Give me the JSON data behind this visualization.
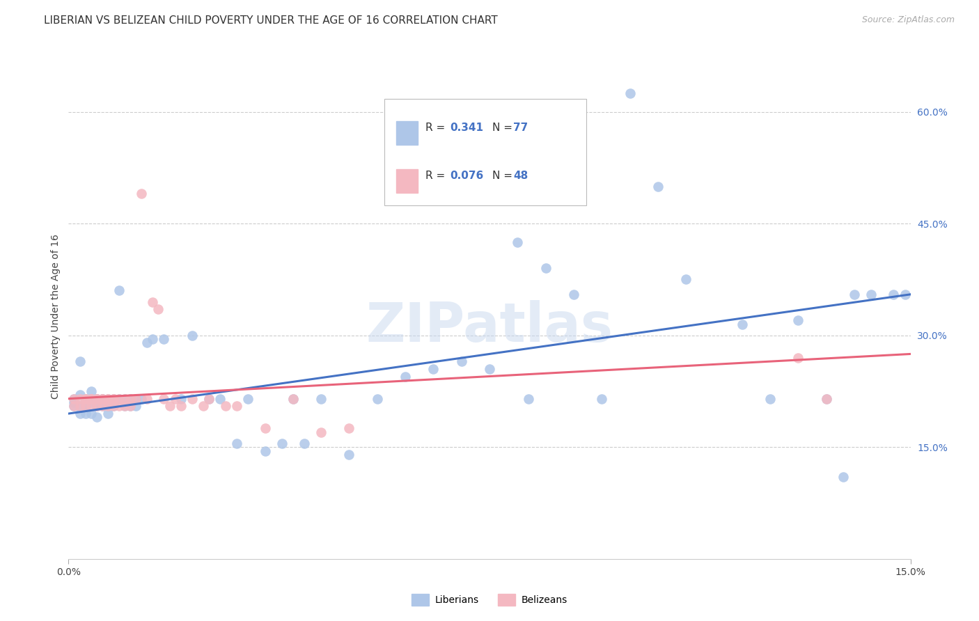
{
  "title": "LIBERIAN VS BELIZEAN CHILD POVERTY UNDER THE AGE OF 16 CORRELATION CHART",
  "source": "Source: ZipAtlas.com",
  "ylabel": "Child Poverty Under the Age of 16",
  "xlim": [
    0.0,
    0.15
  ],
  "ylim": [
    0.0,
    0.65
  ],
  "yticks": [
    0.15,
    0.3,
    0.45,
    0.6
  ],
  "ytick_labels": [
    "15.0%",
    "30.0%",
    "45.0%",
    "60.0%"
  ],
  "watermark_text": "ZIPatlas",
  "liberian_color": "#aec6e8",
  "belizean_color": "#f4b8c1",
  "liberian_line_color": "#4472c4",
  "belizean_line_color": "#e8637a",
  "background_color": "#ffffff",
  "grid_color": "#cccccc",
  "liberian_x": [
    0.001,
    0.001,
    0.001,
    0.002,
    0.002,
    0.002,
    0.002,
    0.003,
    0.003,
    0.003,
    0.003,
    0.003,
    0.004,
    0.004,
    0.004,
    0.004,
    0.005,
    0.005,
    0.005,
    0.005,
    0.005,
    0.006,
    0.006,
    0.006,
    0.006,
    0.007,
    0.007,
    0.007,
    0.008,
    0.008,
    0.008,
    0.009,
    0.009,
    0.01,
    0.01,
    0.011,
    0.011,
    0.012,
    0.012,
    0.013,
    0.014,
    0.015,
    0.017,
    0.02,
    0.022,
    0.025,
    0.027,
    0.03,
    0.032,
    0.035,
    0.038,
    0.04,
    0.042,
    0.045,
    0.05,
    0.055,
    0.06,
    0.065,
    0.07,
    0.075,
    0.08,
    0.082,
    0.085,
    0.09,
    0.095,
    0.1,
    0.105,
    0.11,
    0.12,
    0.125,
    0.13,
    0.135,
    0.138,
    0.14,
    0.143,
    0.147,
    0.149
  ],
  "liberian_y": [
    0.215,
    0.21,
    0.205,
    0.265,
    0.22,
    0.205,
    0.195,
    0.21,
    0.205,
    0.215,
    0.195,
    0.205,
    0.225,
    0.215,
    0.21,
    0.195,
    0.215,
    0.21,
    0.205,
    0.215,
    0.19,
    0.215,
    0.205,
    0.21,
    0.215,
    0.205,
    0.215,
    0.195,
    0.215,
    0.205,
    0.21,
    0.36,
    0.215,
    0.205,
    0.215,
    0.215,
    0.205,
    0.215,
    0.205,
    0.215,
    0.29,
    0.295,
    0.295,
    0.215,
    0.3,
    0.215,
    0.215,
    0.155,
    0.215,
    0.145,
    0.155,
    0.215,
    0.155,
    0.215,
    0.14,
    0.215,
    0.245,
    0.255,
    0.265,
    0.255,
    0.425,
    0.215,
    0.39,
    0.355,
    0.215,
    0.625,
    0.5,
    0.375,
    0.315,
    0.215,
    0.32,
    0.215,
    0.11,
    0.355,
    0.355,
    0.355,
    0.355
  ],
  "belizean_x": [
    0.001,
    0.001,
    0.002,
    0.002,
    0.003,
    0.003,
    0.003,
    0.004,
    0.004,
    0.004,
    0.005,
    0.005,
    0.005,
    0.006,
    0.006,
    0.006,
    0.007,
    0.007,
    0.007,
    0.008,
    0.008,
    0.008,
    0.009,
    0.009,
    0.01,
    0.01,
    0.011,
    0.011,
    0.012,
    0.013,
    0.014,
    0.015,
    0.016,
    0.017,
    0.018,
    0.019,
    0.02,
    0.022,
    0.024,
    0.025,
    0.028,
    0.03,
    0.035,
    0.04,
    0.045,
    0.05,
    0.13,
    0.135
  ],
  "belizean_y": [
    0.215,
    0.205,
    0.215,
    0.205,
    0.215,
    0.205,
    0.215,
    0.215,
    0.205,
    0.215,
    0.215,
    0.205,
    0.215,
    0.215,
    0.205,
    0.215,
    0.215,
    0.205,
    0.215,
    0.215,
    0.205,
    0.215,
    0.215,
    0.205,
    0.215,
    0.205,
    0.215,
    0.205,
    0.215,
    0.49,
    0.215,
    0.345,
    0.335,
    0.215,
    0.205,
    0.215,
    0.205,
    0.215,
    0.205,
    0.215,
    0.205,
    0.205,
    0.175,
    0.215,
    0.17,
    0.175,
    0.27,
    0.215
  ],
  "lib_line_x0": 0.0,
  "lib_line_y0": 0.195,
  "lib_line_x1": 0.15,
  "lib_line_y1": 0.355,
  "bel_line_x0": 0.0,
  "bel_line_y0": 0.215,
  "bel_line_x1": 0.15,
  "bel_line_y1": 0.275
}
